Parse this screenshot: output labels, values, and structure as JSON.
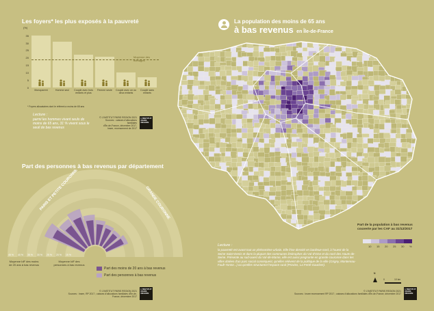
{
  "left_top": {
    "title": "Les foyers* les plus exposés à la pauvreté",
    "y_unit": "(%)",
    "moyenne_label": "Moyenne des ménages",
    "footnote": "* Foyers allocataires dont le référent a moins de 65 ans",
    "lecture_title": "Lecture :",
    "lecture_text": "parmi les hommes vivant seuls de moins de 65 ans, 31 % vivent sous le seuil de bas revenus",
    "source_lines": [
      "© L'INSTITUT PARIS REGION 2021",
      "Sources : caisses d'allocations familiales",
      "d'Île-de-France, décembre 2017,",
      "Insee, recensement de 2017"
    ],
    "logo_lines": [
      "L'INSTITUT",
      "PARIS",
      "REGION"
    ]
  },
  "chart_data": [
    {
      "type": "bar",
      "title": "Les foyers* les plus exposés à la pauvreté",
      "ylabel": "(%)",
      "categories": [
        "Monoparent",
        "Homme seul",
        "Couple avec trois enfants et plus",
        "Femme seule",
        "Couple avec un ou deux enfants",
        "Couple sans enfants"
      ],
      "values": [
        35,
        31,
        22,
        21,
        10,
        7
      ],
      "reference_line": {
        "label": "Moyenne des ménages",
        "value": 19
      },
      "yticks": [
        0,
        5,
        10,
        15,
        20,
        25,
        30,
        35
      ],
      "ylim": [
        0,
        37
      ]
    },
    {
      "type": "radial-bar",
      "title": "Part des personnes à bas revenus par département",
      "series": [
        {
          "name": "Part des moins de 20 ans à bas revenus"
        },
        {
          "name": "Part des personnes à bas revenus"
        }
      ],
      "group_labels": [
        "PARIS ET PETITE COURONNE",
        "GRANDE COURONNE"
      ],
      "averages": [
        {
          "label": "Moyenne IdF des moins de 20 ans à bas revenus",
          "value": 26
        },
        {
          "label": "Moyenne IdF des personnes à bas revenus",
          "value": 19
        }
      ],
      "radial_ticks": [
        "15 %",
        "20 %",
        "25 %",
        "30 %",
        "35 %",
        "40 %",
        "45 %"
      ]
    }
  ],
  "left_bottom": {
    "title": "Part des personnes à bas revenus par département",
    "group_left": "PARIS ET PETITE COURONNE",
    "group_right": "GRANDE COURONNE",
    "ticks_left": [
      "15 %",
      "20 %",
      "25 %",
      "30 %",
      "35 %",
      "40 %",
      "45 %"
    ],
    "avg1": "Moyenne IdF des moins de 20 ans à bas revenus",
    "avg2": "Moyenne IdF des personnes à bas revenus",
    "legend1": "Part des moins de 20 ans à bas revenus",
    "legend2": "Part des personnes à bas revenus",
    "source_copy": "© L'INSTITUT PARIS REGION 2021",
    "source_text": "Sources : Insee, RP 2017 ; caisses d'allocations familiales d'Île-de-France, décembre 2017"
  },
  "right": {
    "title_line1": "La population des moins de 65 ans",
    "title_big": "à bas revenus",
    "title_suffix": "en Île-de-France",
    "legend_title": "Part de la population à bas revenus couverte par les CAF au 31/12/2017",
    "legend_ticks": [
      "10",
      "15",
      "20",
      "25",
      "30",
      "%"
    ],
    "legend_colors": [
      "#e6e3ee",
      "#cdc3dc",
      "#ad9bc6",
      "#8b6fae",
      "#6a4392",
      "#4a1f73"
    ],
    "lecture_title": "Lecture :",
    "lecture_text": "la pauvreté est avant tout un phénomène urbain. Elle frise densité en banlieue nord, à l'ouest de la Seine-Saint-Denis et dans la plupart des communes limitrophes du Val-d'Oise et du nord des Hauts-de-Seine. Présente au sud-ouest du Val-de-Marne, elle est aussi pregnante en grande couronne dans les villes dotées d'un parc social conséquent, qu'elles relèvent de la politique de la ville (Grigny, Montereau-Fault-Yonne...) ou qu'elles structurent l'espace rural (Provins, La Ferté-Gaucher).",
    "scale_label": "10 km",
    "scale_zero": "0",
    "north_label": "N",
    "source_copy": "© L'INSTITUT PARIS REGION 2021",
    "source_text": "Sources : Insee recensement RP 2017 ; caisses d'allocations familiales d'Île-de-France, décembre 2017",
    "logo_lines": [
      "L'INSTITUT",
      "PARIS",
      "REGION"
    ]
  }
}
